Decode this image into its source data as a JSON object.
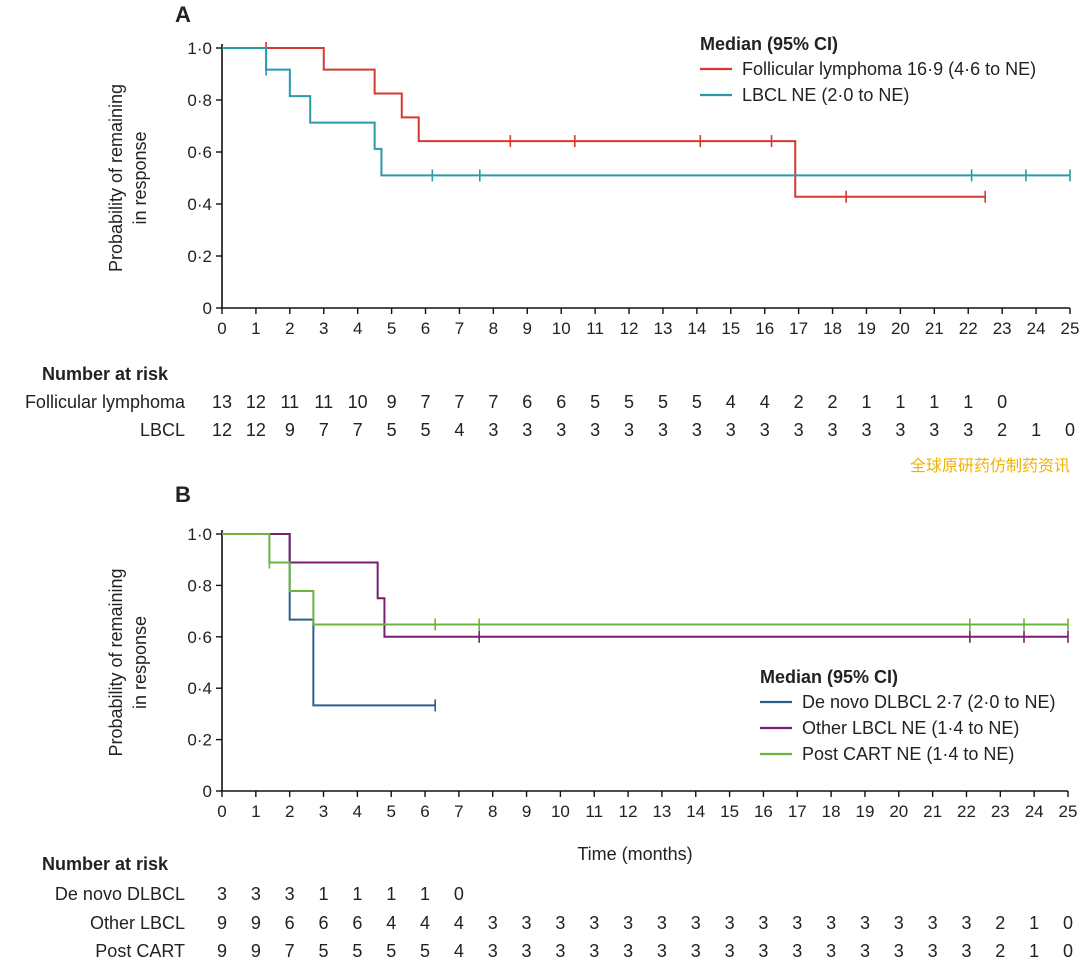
{
  "watermark": "全球原研药仿制药资讯",
  "chart_data": [
    {
      "type": "line",
      "panel": "A",
      "ylabel": "Probability of remaining in response",
      "xlabel": "",
      "xlim": [
        0,
        25
      ],
      "ylim": [
        0,
        1
      ],
      "xticks": [
        0,
        1,
        2,
        3,
        4,
        5,
        6,
        7,
        8,
        9,
        10,
        11,
        12,
        13,
        14,
        15,
        16,
        17,
        18,
        19,
        20,
        21,
        22,
        23,
        24,
        25
      ],
      "yticks": [
        "0",
        "0·2",
        "0·4",
        "0·6",
        "0·8",
        "1·0"
      ],
      "legend_title": "Median (95% CI)",
      "legend_position": "top-right",
      "series": [
        {
          "name": "Follicular lymphoma 16·9 (4·6 to NE)",
          "color": "#d43a32",
          "steps": [
            [
              0,
              1.0
            ],
            [
              3.0,
              0.917
            ],
            [
              4.5,
              0.825
            ],
            [
              5.3,
              0.733
            ],
            [
              5.8,
              0.642
            ],
            [
              16.9,
              0.428
            ],
            [
              22.5,
              0.428
            ]
          ],
          "censored": [
            1.3,
            8.5,
            10.4,
            14.1,
            16.2,
            18.4,
            22.5
          ]
        },
        {
          "name": "LBCL  NE (2·0 to NE)",
          "color": "#2a9aa8",
          "steps": [
            [
              0,
              1.0
            ],
            [
              1.3,
              0.917
            ],
            [
              2.0,
              0.815
            ],
            [
              2.6,
              0.713
            ],
            [
              4.5,
              0.612
            ],
            [
              4.7,
              0.51
            ],
            [
              25,
              0.51
            ]
          ],
          "censored": [
            1.3,
            6.2,
            7.6,
            22.1,
            23.7,
            25
          ]
        }
      ],
      "risk_title": "Number at risk",
      "risk": [
        {
          "label": "Follicular lymphoma",
          "values": [
            13,
            12,
            11,
            11,
            10,
            9,
            7,
            7,
            7,
            6,
            6,
            5,
            5,
            5,
            5,
            4,
            4,
            2,
            2,
            1,
            1,
            1,
            1,
            0
          ]
        },
        {
          "label": "LBCL",
          "values": [
            12,
            12,
            9,
            7,
            7,
            5,
            5,
            4,
            3,
            3,
            3,
            3,
            3,
            3,
            3,
            3,
            3,
            3,
            3,
            3,
            3,
            3,
            3,
            2,
            1,
            0
          ]
        }
      ]
    },
    {
      "type": "line",
      "panel": "B",
      "ylabel": "Probability of remaining in response",
      "xlabel": "Time (months)",
      "xlim": [
        0,
        25
      ],
      "ylim": [
        0,
        1
      ],
      "xticks": [
        0,
        1,
        2,
        3,
        4,
        5,
        6,
        7,
        8,
        9,
        10,
        11,
        12,
        13,
        14,
        15,
        16,
        17,
        18,
        19,
        20,
        21,
        22,
        23,
        24,
        25
      ],
      "yticks": [
        "0",
        "0·2",
        "0·4",
        "0·6",
        "0·8",
        "1·0"
      ],
      "legend_title": "Median (95% CI)",
      "legend_position": "center-right",
      "series": [
        {
          "name": "De novo DLBCL 2·7 (2·0 to NE)",
          "color": "#2a5f8f",
          "steps": [
            [
              0,
              1.0
            ],
            [
              2.0,
              0.667
            ],
            [
              2.7,
              0.333
            ],
            [
              6.3,
              0.333
            ]
          ],
          "censored": [
            6.3
          ]
        },
        {
          "name": "Other LBCL  NE (1·4 to NE)",
          "color": "#7a1f6e",
          "steps": [
            [
              0,
              1.0
            ],
            [
              2.0,
              0.889
            ],
            [
              4.6,
              0.75
            ],
            [
              4.8,
              0.6
            ],
            [
              25,
              0.6
            ]
          ],
          "censored": [
            7.6,
            22.1,
            23.7,
            25
          ]
        },
        {
          "name": "Post CART NE (1·4 to NE)",
          "color": "#6cb33f",
          "steps": [
            [
              0,
              1.0
            ],
            [
              1.4,
              0.889
            ],
            [
              2.0,
              0.778
            ],
            [
              2.7,
              0.648
            ],
            [
              25,
              0.648
            ]
          ],
          "censored": [
            1.4,
            6.3,
            7.6,
            22.1,
            23.7,
            25
          ]
        }
      ],
      "risk_title": "Number at risk",
      "risk": [
        {
          "label": "De novo DLBCL",
          "values": [
            3,
            3,
            3,
            1,
            1,
            1,
            1,
            0
          ]
        },
        {
          "label": "Other LBCL",
          "values": [
            9,
            9,
            6,
            6,
            6,
            4,
            4,
            4,
            3,
            3,
            3,
            3,
            3,
            3,
            3,
            3,
            3,
            3,
            3,
            3,
            3,
            3,
            3,
            2,
            1,
            0
          ]
        },
        {
          "label": "Post CART",
          "values": [
            9,
            9,
            7,
            5,
            5,
            5,
            5,
            4,
            3,
            3,
            3,
            3,
            3,
            3,
            3,
            3,
            3,
            3,
            3,
            3,
            3,
            3,
            3,
            2,
            1,
            0
          ]
        }
      ]
    }
  ]
}
